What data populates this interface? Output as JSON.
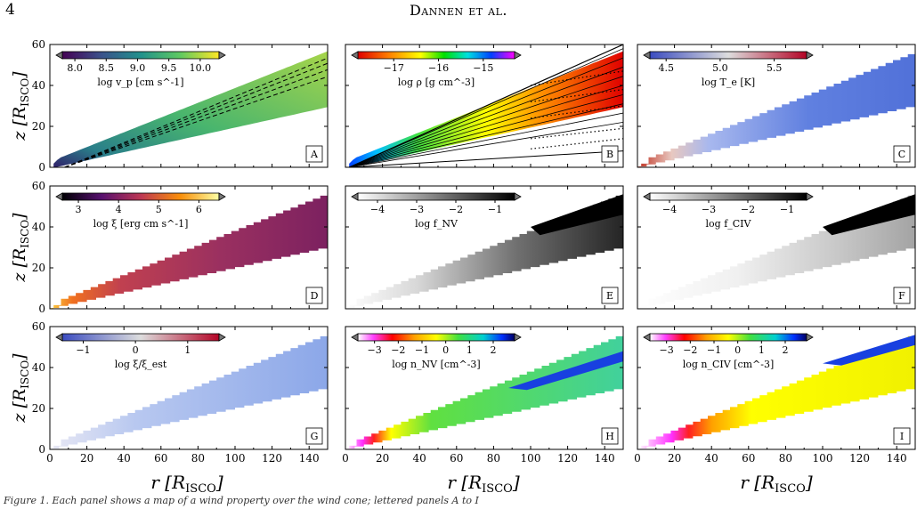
{
  "page": {
    "page_number": "4",
    "running_head": "Dannen et al.",
    "caption_fragment": "Figure 1. Each panel shows a map of a wind property over the wind cone; lettered panels A to I"
  },
  "axes": {
    "ylabel": "z [R_ISCO]",
    "xlabel": "r [R_ISCO]",
    "y_ticks": [
      "0",
      "20",
      "40",
      "60"
    ],
    "x_ticks": [
      "0",
      "20",
      "40",
      "60",
      "80",
      "100",
      "120",
      "140"
    ],
    "y_values": [
      0,
      20,
      40,
      60
    ],
    "x_values": [
      0,
      20,
      40,
      60,
      80,
      100,
      120,
      140
    ],
    "xlim": [
      0,
      150
    ],
    "ylim": [
      0,
      60
    ]
  },
  "panels": [
    {
      "letter": "A",
      "quantity": "log v_p [cm s^-1]",
      "cb_ticks": [
        "8.0",
        "8.5",
        "9.0",
        "9.5",
        "10.0"
      ],
      "cb_values": [
        8.0,
        8.5,
        9.0,
        9.5,
        10.0
      ],
      "cb_range": [
        7.8,
        10.3
      ],
      "colormap": "viridis"
    },
    {
      "letter": "B",
      "quantity": "log ρ [g cm^-3]",
      "cb_ticks": [
        "−17",
        "−16",
        "−15"
      ],
      "cb_values": [
        -17,
        -16,
        -15
      ],
      "cb_range": [
        -17.8,
        -14.3
      ],
      "colormap": "jet"
    },
    {
      "letter": "C",
      "quantity": "log T_e [K]",
      "cb_ticks": [
        "4.5",
        "5.0",
        "5.5"
      ],
      "cb_values": [
        4.5,
        5.0,
        5.5
      ],
      "cb_range": [
        4.35,
        5.8
      ],
      "colormap": "coolwarm"
    },
    {
      "letter": "D",
      "quantity": "log ξ [erg cm s^-1]",
      "cb_ticks": [
        "3",
        "4",
        "5",
        "6"
      ],
      "cb_values": [
        3,
        4,
        5,
        6
      ],
      "cb_range": [
        2.6,
        6.5
      ],
      "colormap": "inferno"
    },
    {
      "letter": "E",
      "quantity": "log f_NV",
      "cb_ticks": [
        "−4",
        "−3",
        "−2",
        "−1"
      ],
      "cb_values": [
        -4,
        -3,
        -2,
        -1
      ],
      "cb_range": [
        -4.5,
        -0.5
      ],
      "colormap": "greys"
    },
    {
      "letter": "F",
      "quantity": "log f_CIV",
      "cb_ticks": [
        "−4",
        "−3",
        "−2",
        "−1"
      ],
      "cb_values": [
        -4,
        -3,
        -2,
        -1
      ],
      "cb_range": [
        -4.5,
        -0.5
      ],
      "colormap": "greys"
    },
    {
      "letter": "G",
      "quantity": "log ξ/ξ_est",
      "cb_ticks": [
        "−1",
        "0",
        "1"
      ],
      "cb_values": [
        -1,
        0,
        1
      ],
      "cb_range": [
        -1.4,
        1.6
      ],
      "colormap": "coolwarm"
    },
    {
      "letter": "H",
      "quantity": "log n_NV [cm^-3]",
      "cb_ticks": [
        "−3",
        "−2",
        "−1",
        "0",
        "1",
        "2"
      ],
      "cb_values": [
        -3,
        -2,
        -1,
        0,
        1,
        2
      ],
      "cb_range": [
        -3.7,
        2.9
      ],
      "colormap": "spectral"
    },
    {
      "letter": "I",
      "quantity": "log n_CIV [cm^-3]",
      "cb_ticks": [
        "−3",
        "−2",
        "−1",
        "0",
        "1",
        "2"
      ],
      "cb_values": [
        -3,
        -2,
        -1,
        0,
        1,
        2
      ],
      "cb_range": [
        -3.7,
        2.9
      ],
      "colormap": "spectral"
    }
  ]
}
